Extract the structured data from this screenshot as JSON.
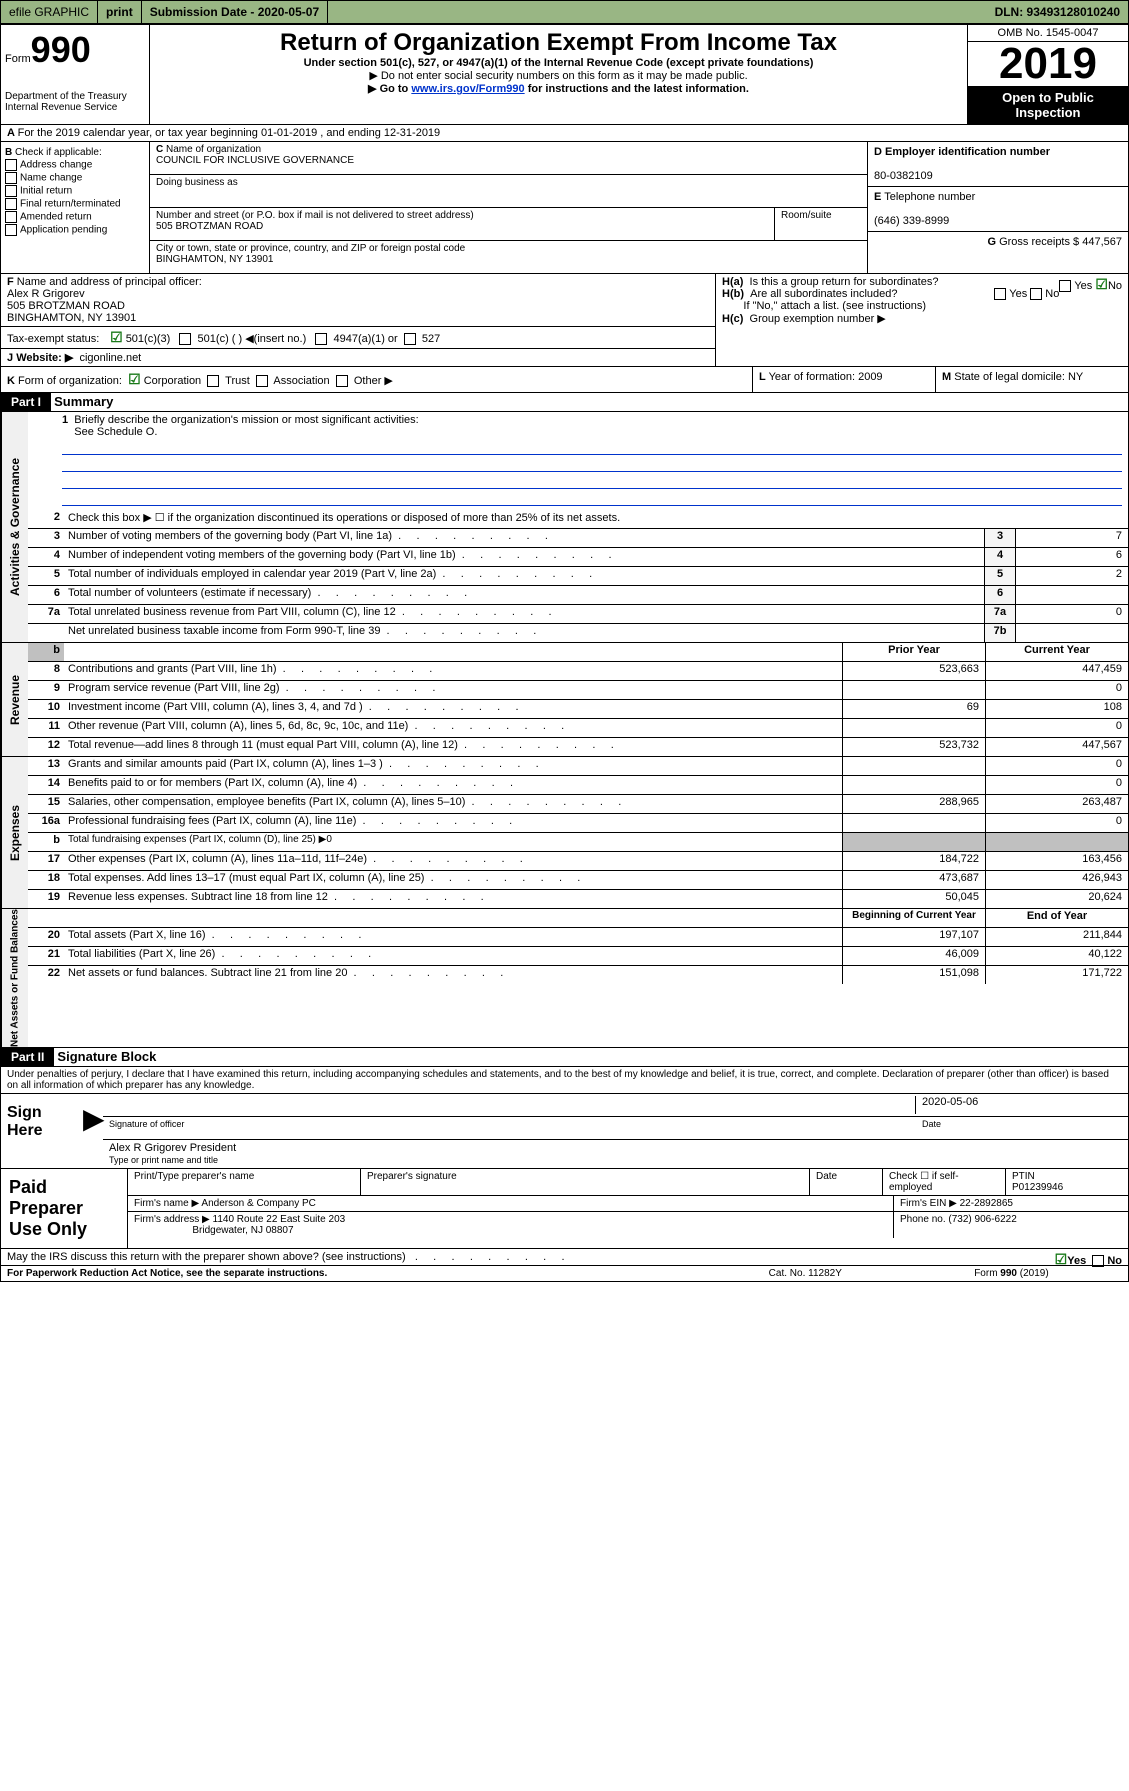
{
  "topbar": {
    "efile": "efile GRAPHIC",
    "print": "print",
    "sub_label": "Submission Date - ",
    "sub_date": "2020-05-07",
    "dln": "DLN: 93493128010240"
  },
  "header": {
    "form_label": "Form",
    "form_no": "990",
    "dept1": "Department of the Treasury",
    "dept2": "Internal Revenue Service",
    "title": "Return of Organization Exempt From Income Tax",
    "sub1": "Under section 501(c), 527, or 4947(a)(1) of the Internal Revenue Code (except private foundations)",
    "sub2": "▶ Do not enter social security numbers on this form as it may be made public.",
    "sub3a": "▶ Go to ",
    "sub3b": "www.irs.gov/Form990",
    "sub3c": " for instructions and the latest information.",
    "omb": "OMB No. 1545-0047",
    "year": "2019",
    "open": "Open to Public Inspection"
  },
  "rowA": "For the 2019 calendar year, or tax year beginning 01-01-2019    , and ending 12-31-2019",
  "checkB": {
    "label": "Check if applicable:",
    "items": [
      "Address change",
      "Name change",
      "Initial return",
      "Final return/terminated",
      "Amended return",
      "Application pending"
    ]
  },
  "boxC": {
    "name_label": "Name of organization",
    "name": "COUNCIL FOR INCLUSIVE GOVERNANCE",
    "dba": "Doing business as",
    "addr_label": "Number and street (or P.O. box if mail is not delivered to street address)",
    "room": "Room/suite",
    "addr": "505 BROTZMAN ROAD",
    "city_label": "City or town, state or province, country, and ZIP or foreign postal code",
    "city": "BINGHAMTON, NY  13901"
  },
  "boxD": {
    "label": "Employer identification number",
    "val": "80-0382109"
  },
  "boxE": {
    "label": "Telephone number",
    "val": "(646) 339-8999"
  },
  "boxG": {
    "label": "Gross receipts $",
    "val": "447,567"
  },
  "boxF": {
    "label": "Name and address of principal officer:",
    "name": "Alex R Grigorev",
    "addr1": "505 BROTZMAN ROAD",
    "addr2": "BINGHAMTON, NY  13901"
  },
  "boxH": {
    "a": "Is this a group return for subordinates?",
    "b": "Are all subordinates included?",
    "note": "If \"No,\" attach a list. (see instructions)",
    "c": "Group exemption number ▶"
  },
  "taxStatus": {
    "label": "Tax-exempt status:",
    "opts": [
      "501(c)(3)",
      "501(c) (  ) ◀(insert no.)",
      "4947(a)(1) or",
      "527"
    ]
  },
  "rowJ": {
    "label": "Website: ▶",
    "val": "cigonline.net"
  },
  "rowK": {
    "label": "Form of organization:",
    "opts": [
      "Corporation",
      "Trust",
      "Association",
      "Other ▶"
    ]
  },
  "rowL": {
    "label": "Year of formation:",
    "val": "2009"
  },
  "rowM": {
    "label": "State of legal domicile:",
    "val": "NY"
  },
  "part1": {
    "header": "Part I",
    "title": "Summary",
    "l1": "Briefly describe the organization's mission or most significant activities:",
    "l1val": "See Schedule O.",
    "l2": "Check this box ▶ ☐  if the organization discontinued its operations or disposed of more than 25% of its net assets.",
    "l3": "Number of voting members of the governing body (Part VI, line 1a)",
    "l4": "Number of independent voting members of the governing body (Part VI, line 1b)",
    "l5": "Total number of individuals employed in calendar year 2019 (Part V, line 2a)",
    "l6": "Total number of volunteers (estimate if necessary)",
    "l7a": "Total unrelated business revenue from Part VIII, column (C), line 12",
    "l7b": "Net unrelated business taxable income from Form 990-T, line 39",
    "v3": "7",
    "v4": "6",
    "v5": "2",
    "v6": "",
    "v7a": "0",
    "v7b": ""
  },
  "labels": {
    "gov": "Activities & Governance",
    "rev": "Revenue",
    "exp": "Expenses",
    "net": "Net Assets or Fund Balances",
    "prior": "Prior Year",
    "current": "Current Year",
    "begin": "Beginning of Current Year",
    "end": "End of Year"
  },
  "revenue": [
    {
      "n": "8",
      "d": "Contributions and grants (Part VIII, line 1h)",
      "p": "523,663",
      "c": "447,459"
    },
    {
      "n": "9",
      "d": "Program service revenue (Part VIII, line 2g)",
      "p": "",
      "c": "0"
    },
    {
      "n": "10",
      "d": "Investment income (Part VIII, column (A), lines 3, 4, and 7d )",
      "p": "69",
      "c": "108"
    },
    {
      "n": "11",
      "d": "Other revenue (Part VIII, column (A), lines 5, 6d, 8c, 9c, 10c, and 11e)",
      "p": "",
      "c": "0"
    },
    {
      "n": "12",
      "d": "Total revenue—add lines 8 through 11 (must equal Part VIII, column (A), line 12)",
      "p": "523,732",
      "c": "447,567"
    }
  ],
  "expenses": [
    {
      "n": "13",
      "d": "Grants and similar amounts paid (Part IX, column (A), lines 1–3 )",
      "p": "",
      "c": "0"
    },
    {
      "n": "14",
      "d": "Benefits paid to or for members (Part IX, column (A), line 4)",
      "p": "",
      "c": "0"
    },
    {
      "n": "15",
      "d": "Salaries, other compensation, employee benefits (Part IX, column (A), lines 5–10)",
      "p": "288,965",
      "c": "263,487"
    },
    {
      "n": "16a",
      "d": "Professional fundraising fees (Part IX, column (A), line 11e)",
      "p": "",
      "c": "0"
    },
    {
      "n": "b",
      "d": "Total fundraising expenses (Part IX, column (D), line 25) ▶0",
      "p": "gray",
      "c": "gray",
      "small": true
    },
    {
      "n": "17",
      "d": "Other expenses (Part IX, column (A), lines 11a–11d, 11f–24e)",
      "p": "184,722",
      "c": "163,456"
    },
    {
      "n": "18",
      "d": "Total expenses. Add lines 13–17 (must equal Part IX, column (A), line 25)",
      "p": "473,687",
      "c": "426,943"
    },
    {
      "n": "19",
      "d": "Revenue less expenses. Subtract line 18 from line 12",
      "p": "50,045",
      "c": "20,624"
    }
  ],
  "netassets": [
    {
      "n": "20",
      "d": "Total assets (Part X, line 16)",
      "p": "197,107",
      "c": "211,844"
    },
    {
      "n": "21",
      "d": "Total liabilities (Part X, line 26)",
      "p": "46,009",
      "c": "40,122"
    },
    {
      "n": "22",
      "d": "Net assets or fund balances. Subtract line 21 from line 20",
      "p": "151,098",
      "c": "171,722"
    }
  ],
  "part2": {
    "header": "Part II",
    "title": "Signature Block",
    "decl": "Under penalties of perjury, I declare that I have examined this return, including accompanying schedules and statements, and to the best of my knowledge and belief, it is true, correct, and complete. Declaration of preparer (other than officer) is based on all information of which preparer has any knowledge.",
    "sign": "Sign Here",
    "sig_of": "Signature of officer",
    "date_label": "Date",
    "date": "2020-05-06",
    "name": "Alex R Grigorev  President",
    "name_label": "Type or print name and title"
  },
  "prep": {
    "label": "Paid Preparer Use Only",
    "h1": "Print/Type preparer's name",
    "h2": "Preparer's signature",
    "h3": "Date",
    "h4a": "Check ☐ if self-employed",
    "h5": "PTIN",
    "ptin": "P01239946",
    "firm_label": "Firm's name    ▶",
    "firm": "Anderson & Company PC",
    "ein_label": "Firm's EIN ▶",
    "ein": "22-2892865",
    "addr_label": "Firm's address ▶",
    "addr1": "1140 Route 22 East Suite 203",
    "addr2": "Bridgewater, NJ  08807",
    "phone_label": "Phone no.",
    "phone": "(732) 906-6222"
  },
  "bottom": {
    "q": "May the IRS discuss this return with the preparer shown above? (see instructions)",
    "paperwork": "For Paperwork Reduction Act Notice, see the separate instructions.",
    "cat": "Cat. No. 11282Y",
    "form": "Form 990 (2019)"
  }
}
